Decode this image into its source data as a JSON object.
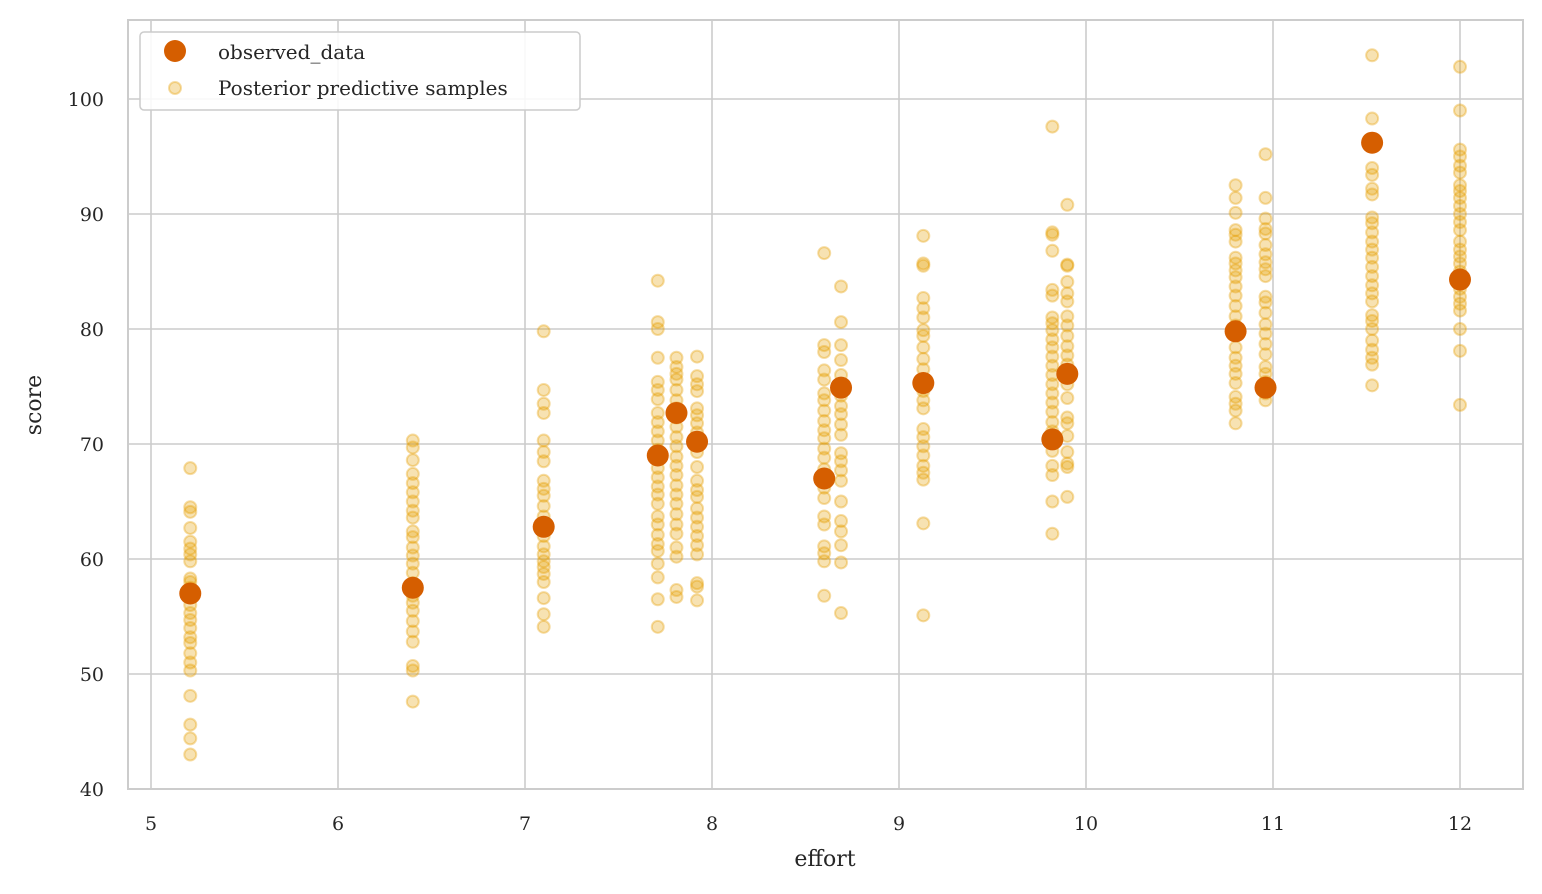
{
  "chart_data": {
    "type": "scatter",
    "xlabel": "effort",
    "ylabel": "score",
    "xlim": [
      4.88,
      12.35
    ],
    "ylim": [
      40,
      107
    ],
    "xticks": [
      5,
      6,
      7,
      8,
      9,
      10,
      11,
      12
    ],
    "yticks": [
      40,
      50,
      60,
      70,
      80,
      90,
      100
    ],
    "xtick_labels": [
      "5",
      "6",
      "7",
      "8",
      "9",
      "10",
      "11",
      "12"
    ],
    "ytick_labels": [
      "40",
      "50",
      "60",
      "70",
      "80",
      "90",
      "100"
    ],
    "grid": true,
    "legend_position": "top-left",
    "legend": [
      "observed_data",
      "Posterior predictive samples"
    ],
    "colors": {
      "observed": "#d55e00",
      "samples": "#e69f00",
      "grid": "#cccccc",
      "spine": "#cccccc"
    },
    "series": [
      {
        "name": "observed_data",
        "x": [
          5.21,
          6.4,
          7.1,
          7.71,
          7.81,
          7.92,
          8.6,
          8.69,
          9.13,
          9.82,
          9.9,
          10.8,
          10.96,
          11.53,
          12.0
        ],
        "y": [
          57.0,
          57.5,
          62.8,
          69.0,
          72.7,
          70.2,
          67.0,
          74.9,
          75.3,
          70.4,
          76.1,
          79.8,
          74.9,
          96.2,
          84.3
        ]
      },
      {
        "name": "Posterior predictive samples",
        "groups": [
          {
            "x": 5.21,
            "y": [
              67.9,
              64.5,
              64.1,
              62.7,
              61.5,
              60.9,
              60.4,
              59.8,
              58.3,
              58.0,
              57.5,
              56.8,
              56.0,
              55.3,
              54.7,
              54.0,
              53.2,
              52.7,
              51.8,
              51.0,
              50.3,
              48.1,
              45.6,
              44.4,
              43.0
            ]
          },
          {
            "x": 6.4,
            "y": [
              70.3,
              69.7,
              68.6,
              67.4,
              66.6,
              65.8,
              65.0,
              64.2,
              63.6,
              62.4,
              61.9,
              61.0,
              60.3,
              59.6,
              58.8,
              57.9,
              56.8,
              56.2,
              55.5,
              54.6,
              53.7,
              52.8,
              50.7,
              50.3,
              47.6
            ]
          },
          {
            "x": 7.1,
            "y": [
              79.8,
              74.7,
              73.5,
              72.7,
              70.3,
              69.3,
              68.5,
              66.8,
              66.1,
              65.5,
              64.6,
              63.7,
              62.0,
              61.1,
              60.4,
              59.8,
              59.3,
              58.7,
              58.0,
              56.6,
              55.2,
              54.1
            ]
          },
          {
            "x": 7.71,
            "y": [
              84.2,
              80.6,
              80.0,
              77.5,
              75.4,
              74.7,
              73.9,
              72.7,
              71.9,
              71.1,
              70.3,
              69.5,
              68.7,
              67.9,
              67.1,
              66.3,
              65.6,
              64.8,
              63.7,
              63.0,
              62.1,
              61.3,
              60.7,
              59.6,
              58.4,
              56.5,
              54.1
            ]
          },
          {
            "x": 7.81,
            "y": [
              77.5,
              76.7,
              76.1,
              75.6,
              74.7,
              73.8,
              73.1,
              72.3,
              71.5,
              70.6,
              69.8,
              68.9,
              68.1,
              67.3,
              66.4,
              65.6,
              64.8,
              63.9,
              63.0,
              62.2,
              61.0,
              60.2,
              57.3,
              56.7
            ]
          },
          {
            "x": 7.92,
            "y": [
              77.6,
              75.9,
              75.2,
              74.6,
              73.1,
              72.5,
              71.8,
              71.0,
              70.1,
              69.3,
              68.0,
              66.8,
              66.0,
              65.4,
              64.4,
              63.6,
              62.8,
              62.0,
              61.2,
              60.4,
              57.9,
              57.6,
              56.4
            ]
          },
          {
            "x": 8.6,
            "y": [
              86.6,
              78.6,
              78.0,
              76.4,
              75.6,
              74.4,
              73.8,
              72.9,
              72.0,
              71.2,
              70.5,
              69.6,
              68.8,
              67.8,
              66.9,
              66.2,
              65.3,
              63.7,
              63.0,
              61.1,
              60.5,
              59.8,
              56.8
            ]
          },
          {
            "x": 8.69,
            "y": [
              83.7,
              80.6,
              78.6,
              77.3,
              76.0,
              74.2,
              73.3,
              72.6,
              71.7,
              70.8,
              69.2,
              68.5,
              67.7,
              66.8,
              65.0,
              63.3,
              62.4,
              61.2,
              59.7,
              55.3
            ]
          },
          {
            "x": 9.13,
            "y": [
              88.1,
              85.7,
              85.5,
              82.7,
              81.8,
              81.0,
              79.9,
              79.4,
              78.4,
              77.4,
              76.5,
              75.5,
              74.6,
              73.8,
              73.1,
              71.3,
              70.6,
              69.8,
              69.0,
              68.1,
              67.5,
              66.9,
              63.1,
              55.1
            ]
          },
          {
            "x": 9.82,
            "y": [
              97.6,
              88.4,
              88.2,
              86.8,
              83.4,
              82.9,
              81.0,
              80.5,
              79.9,
              79.1,
              78.4,
              77.6,
              76.8,
              76.0,
              75.2,
              74.4,
              73.6,
              72.8,
              71.9,
              71.1,
              70.2,
              69.4,
              68.1,
              67.3,
              65.0,
              62.2
            ]
          },
          {
            "x": 9.9,
            "y": [
              90.8,
              85.6,
              85.5,
              84.1,
              83.1,
              82.4,
              81.1,
              80.3,
              79.4,
              78.5,
              77.7,
              76.9,
              76.1,
              75.2,
              74.0,
              72.3,
              71.8,
              70.7,
              69.3,
              68.3,
              68.0,
              65.4
            ]
          },
          {
            "x": 10.8,
            "y": [
              92.5,
              91.4,
              90.1,
              88.6,
              88.2,
              87.6,
              86.2,
              85.7,
              85.1,
              84.5,
              83.7,
              82.9,
              82.0,
              81.1,
              80.3,
              79.6,
              78.4,
              77.5,
              76.8,
              76.1,
              75.3,
              74.1,
              73.5,
              72.9,
              71.8
            ]
          },
          {
            "x": 10.96,
            "y": [
              95.2,
              91.4,
              89.6,
              88.7,
              88.3,
              87.3,
              86.5,
              85.8,
              85.2,
              84.6,
              82.8,
              82.3,
              81.4,
              80.4,
              79.6,
              78.7,
              77.8,
              76.7,
              76.1,
              75.4,
              74.4,
              73.8
            ]
          },
          {
            "x": 11.53,
            "y": [
              103.8,
              98.3,
              94.0,
              93.4,
              92.2,
              91.7,
              89.7,
              89.2,
              88.4,
              87.6,
              86.9,
              86.2,
              85.4,
              84.6,
              83.8,
              83.1,
              82.4,
              81.2,
              80.7,
              80.0,
              79.0,
              78.2,
              77.5,
              76.9,
              75.1
            ]
          },
          {
            "x": 12.0,
            "y": [
              102.8,
              99.0,
              95.6,
              95.0,
              94.2,
              93.6,
              92.5,
              92.0,
              91.4,
              90.7,
              90.0,
              89.3,
              88.6,
              87.6,
              86.9,
              86.3,
              85.7,
              85.0,
              84.3,
              83.5,
              82.8,
              82.2,
              81.6,
              80.0,
              78.1,
              73.4
            ]
          }
        ]
      }
    ]
  }
}
